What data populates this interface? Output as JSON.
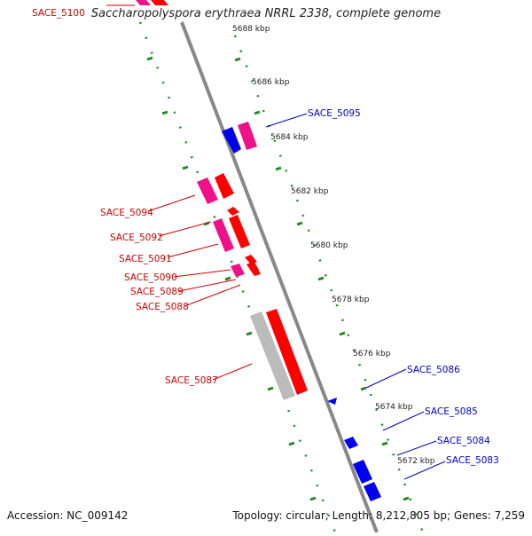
{
  "title": "Saccharopolyspora erythraea NRRL 2338, complete genome",
  "footer": {
    "accession": "Accession: NC_009142",
    "stats": "Topology: circular; Length: 8,212,805 bp; Genes: 7,259"
  },
  "colors": {
    "forward_label": "#cc0000",
    "reverse_label": "#0000cc",
    "cds_forward": "#ff0000",
    "cds_forward_pink": "#ee1188",
    "cds_reverse": "#0000ee",
    "rna_gray": "#bbbbbb",
    "tick_green": "#228822",
    "backbone": "#888888"
  },
  "ticks": [
    {
      "label": "5688 kbp"
    },
    {
      "label": "5686 kbp"
    },
    {
      "label": "5684 kbp"
    },
    {
      "label": "5682 kbp"
    },
    {
      "label": "5680 kbp"
    },
    {
      "label": "5678 kbp"
    },
    {
      "label": "5676 kbp"
    },
    {
      "label": "5674 kbp"
    },
    {
      "label": "5672 kbp"
    }
  ],
  "genes_forward": [
    {
      "label": "SACE_5100"
    },
    {
      "label": "SACE_5094"
    },
    {
      "label": "SACE_5092"
    },
    {
      "label": "SACE_5091"
    },
    {
      "label": "SACE_5090"
    },
    {
      "label": "SACE_5089"
    },
    {
      "label": "SACE_5088"
    },
    {
      "label": "SACE_5087"
    }
  ],
  "genes_reverse": [
    {
      "label": "SACE_5095"
    },
    {
      "label": "SACE_5086"
    },
    {
      "label": "SACE_5085"
    },
    {
      "label": "SACE_5084"
    },
    {
      "label": "SACE_5083"
    }
  ]
}
